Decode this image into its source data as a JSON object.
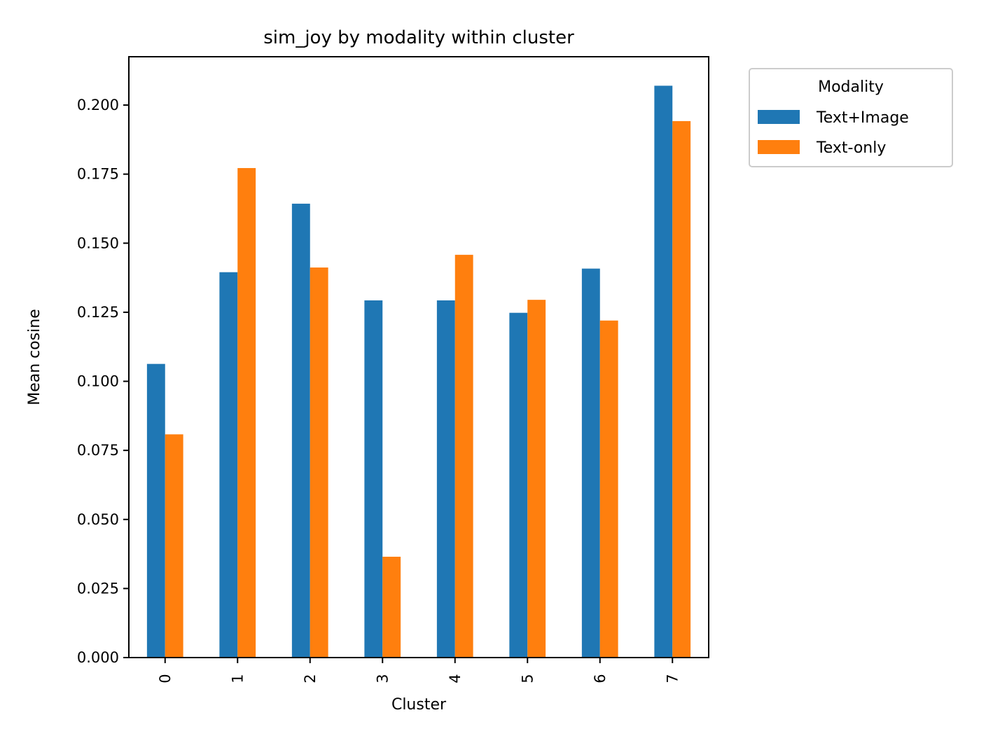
{
  "chart_data": {
    "type": "bar",
    "title": "sim_joy by modality within cluster",
    "xlabel": "Cluster",
    "ylabel": "Mean cosine",
    "categories": [
      "0",
      "1",
      "2",
      "3",
      "4",
      "5",
      "6",
      "7"
    ],
    "series": [
      {
        "name": "Text+Image",
        "color": "#1f77b4",
        "values": [
          0.1063,
          0.1395,
          0.1643,
          0.1293,
          0.1293,
          0.1248,
          0.1408,
          0.207
        ]
      },
      {
        "name": "Text-only",
        "color": "#ff7f0e",
        "values": [
          0.0808,
          0.1772,
          0.1412,
          0.0365,
          0.1458,
          0.1295,
          0.122,
          0.1942
        ]
      }
    ],
    "ylim": [
      0,
      0.2175
    ],
    "yticks": [
      "0.000",
      "0.025",
      "0.050",
      "0.075",
      "0.100",
      "0.125",
      "0.150",
      "0.175",
      "0.200"
    ],
    "grid": false,
    "legend": {
      "title": "Modality",
      "placement": "outside upper right"
    }
  }
}
